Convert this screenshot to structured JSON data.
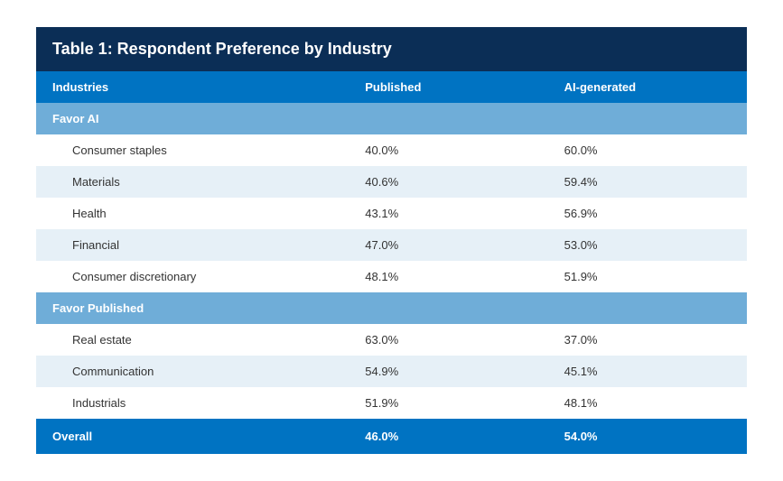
{
  "title": "Table 1: Respondent Preference by Industry",
  "columns": [
    "Industries",
    "Published",
    "AI-generated"
  ],
  "sections": [
    {
      "label": "Favor AI",
      "rows": [
        {
          "industry": "Consumer staples",
          "published": "40.0%",
          "ai": "60.0%"
        },
        {
          "industry": "Materials",
          "published": "40.6%",
          "ai": "59.4%"
        },
        {
          "industry": "Health",
          "published": "43.1%",
          "ai": "56.9%"
        },
        {
          "industry": "Financial",
          "published": "47.0%",
          "ai": "53.0%"
        },
        {
          "industry": "Consumer discretionary",
          "published": "48.1%",
          "ai": "51.9%"
        }
      ]
    },
    {
      "label": "Favor Published",
      "rows": [
        {
          "industry": "Real estate",
          "published": "63.0%",
          "ai": "37.0%"
        },
        {
          "industry": "Communication",
          "published": "54.9%",
          "ai": "45.1%"
        },
        {
          "industry": "Industrials",
          "published": "51.9%",
          "ai": "48.1%"
        }
      ]
    }
  ],
  "overall": {
    "label": "Overall",
    "published": "46.0%",
    "ai": "54.0%"
  },
  "style": {
    "title_bg": "#0b2e56",
    "header_bg": "#0073c2",
    "section_bg": "#6fadd8",
    "row_odd": "#ffffff",
    "row_even": "#e6f0f7",
    "title_fontsize": 18,
    "cell_fontsize": 13,
    "col_widths_pct": [
      44,
      28,
      28
    ]
  }
}
